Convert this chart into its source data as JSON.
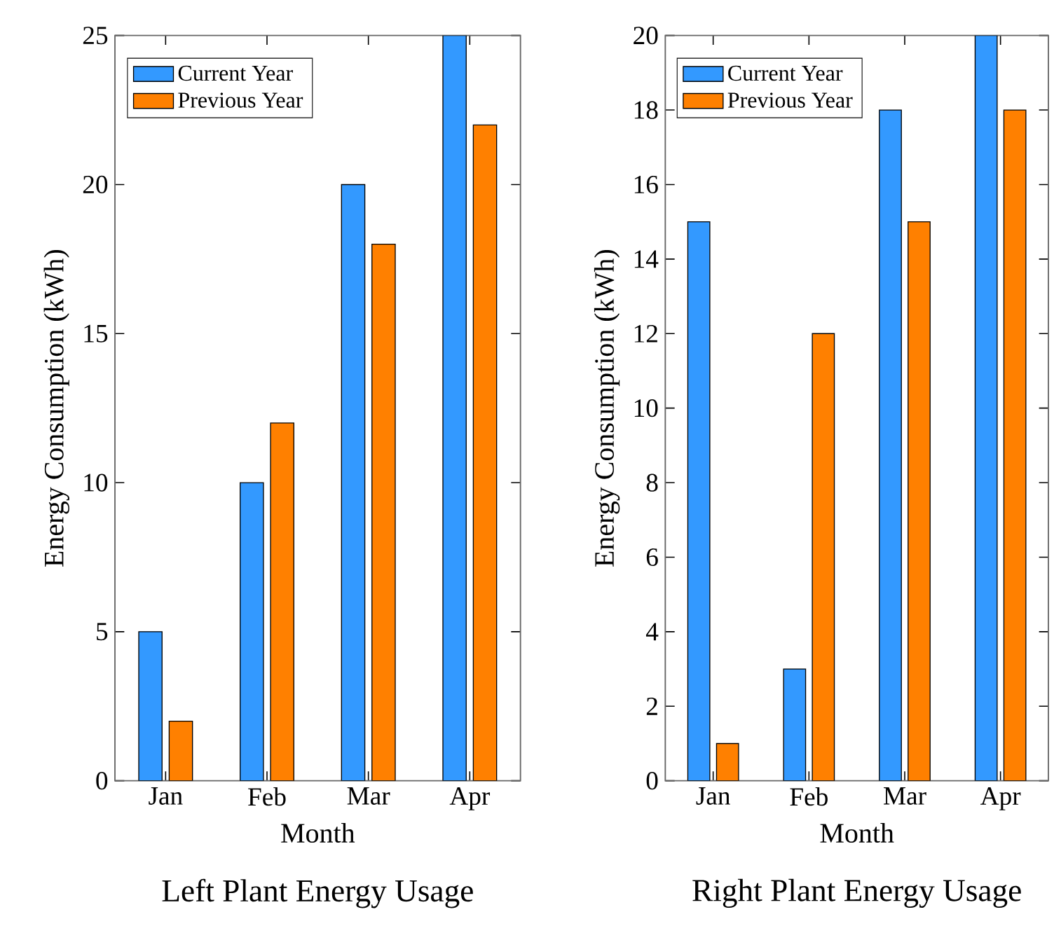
{
  "chart_data": [
    {
      "type": "bar",
      "title": "Left Plant Energy Usage",
      "xlabel": "Month",
      "ylabel": "Energy Consumption (kWh)",
      "categories": [
        "Jan",
        "Feb",
        "Mar",
        "Apr"
      ],
      "series": [
        {
          "name": "Current Year",
          "color": "#3399ff",
          "values": [
            5,
            10,
            20,
            25
          ]
        },
        {
          "name": "Previous Year",
          "color": "#ff8000",
          "values": [
            2,
            12,
            18,
            22
          ]
        }
      ],
      "ylim": [
        0,
        25
      ],
      "yticks": [
        0,
        5,
        10,
        15,
        20,
        25
      ],
      "legend": "top left"
    },
    {
      "type": "bar",
      "title": "Right Plant Energy Usage",
      "xlabel": "Month",
      "ylabel": "Energy Consumption (kWh)",
      "categories": [
        "Jan",
        "Feb",
        "Mar",
        "Apr"
      ],
      "series": [
        {
          "name": "Current Year",
          "color": "#3399ff",
          "values": [
            15,
            3,
            18,
            20
          ]
        },
        {
          "name": "Previous Year",
          "color": "#ff8000",
          "values": [
            1,
            12,
            15,
            18
          ]
        }
      ],
      "ylim": [
        0,
        20
      ],
      "yticks": [
        0,
        2,
        4,
        6,
        8,
        10,
        12,
        14,
        16,
        18,
        20
      ],
      "legend": "top left"
    }
  ]
}
